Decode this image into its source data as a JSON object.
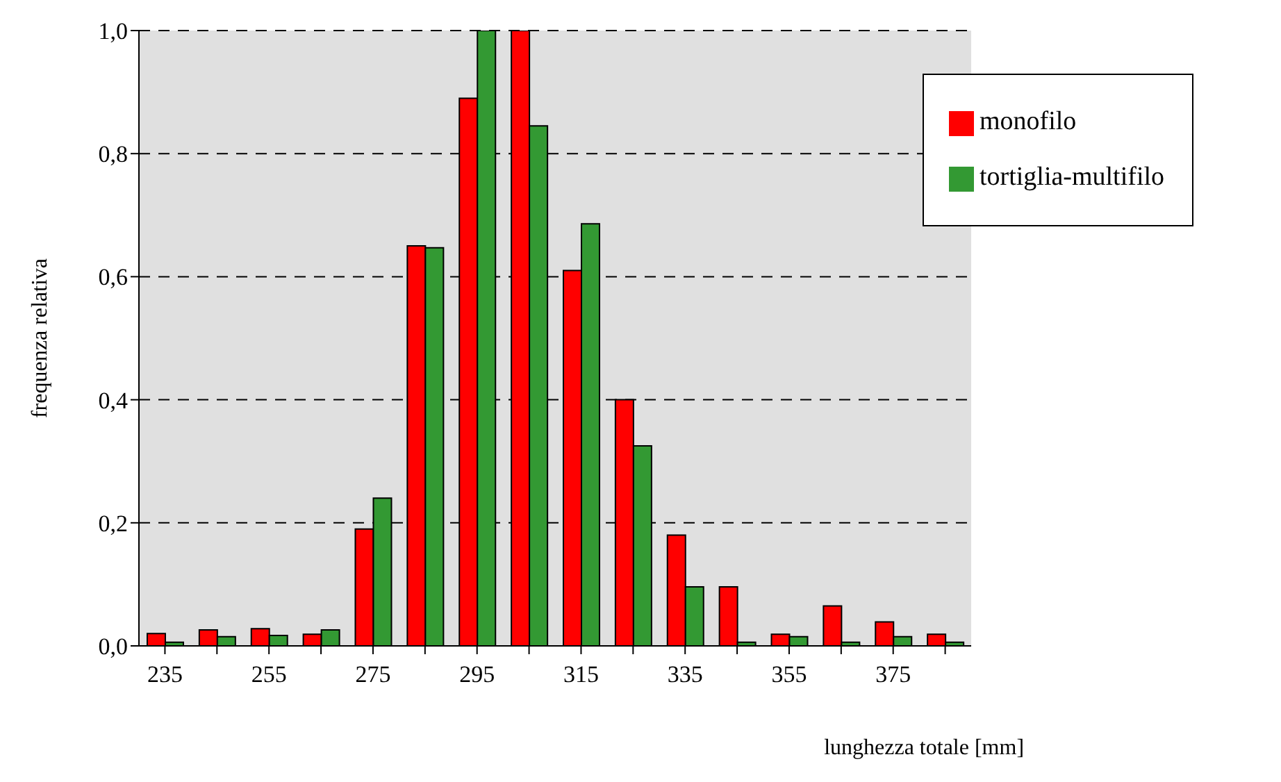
{
  "chart_data": {
    "type": "bar",
    "xlabel": "lunghezza totale [mm]",
    "ylabel": "frequenza relativa",
    "categories": [
      "235",
      null,
      "255",
      null,
      "275",
      null,
      "295",
      null,
      "315",
      null,
      "335",
      null,
      "355",
      null,
      "375",
      null
    ],
    "series": [
      {
        "name": "monofilo",
        "color": "#ff0000",
        "values": [
          0.02,
          0.026,
          0.028,
          0.019,
          0.19,
          0.65,
          0.89,
          1.0,
          0.61,
          0.4,
          0.18,
          0.096,
          0.019,
          0.065,
          0.039,
          0.019
        ]
      },
      {
        "name": "tortiglia-multifilo",
        "color": "#339933",
        "values": [
          0.006,
          0.015,
          0.017,
          0.026,
          0.24,
          0.647,
          1.0,
          0.845,
          0.686,
          0.325,
          0.096,
          0.006,
          0.015,
          0.006,
          0.015,
          0.006
        ]
      }
    ],
    "ylim": [
      0,
      1
    ],
    "yticks": [
      {
        "value": 0,
        "label": "0,0"
      },
      {
        "value": 0.2,
        "label": "0,2"
      },
      {
        "value": 0.4,
        "label": "0,4"
      },
      {
        "value": 0.6,
        "label": "0,6"
      },
      {
        "value": 0.8,
        "label": "0,8"
      },
      {
        "value": 1,
        "label": "1,0"
      }
    ],
    "grid": "y",
    "legend": "top right"
  }
}
